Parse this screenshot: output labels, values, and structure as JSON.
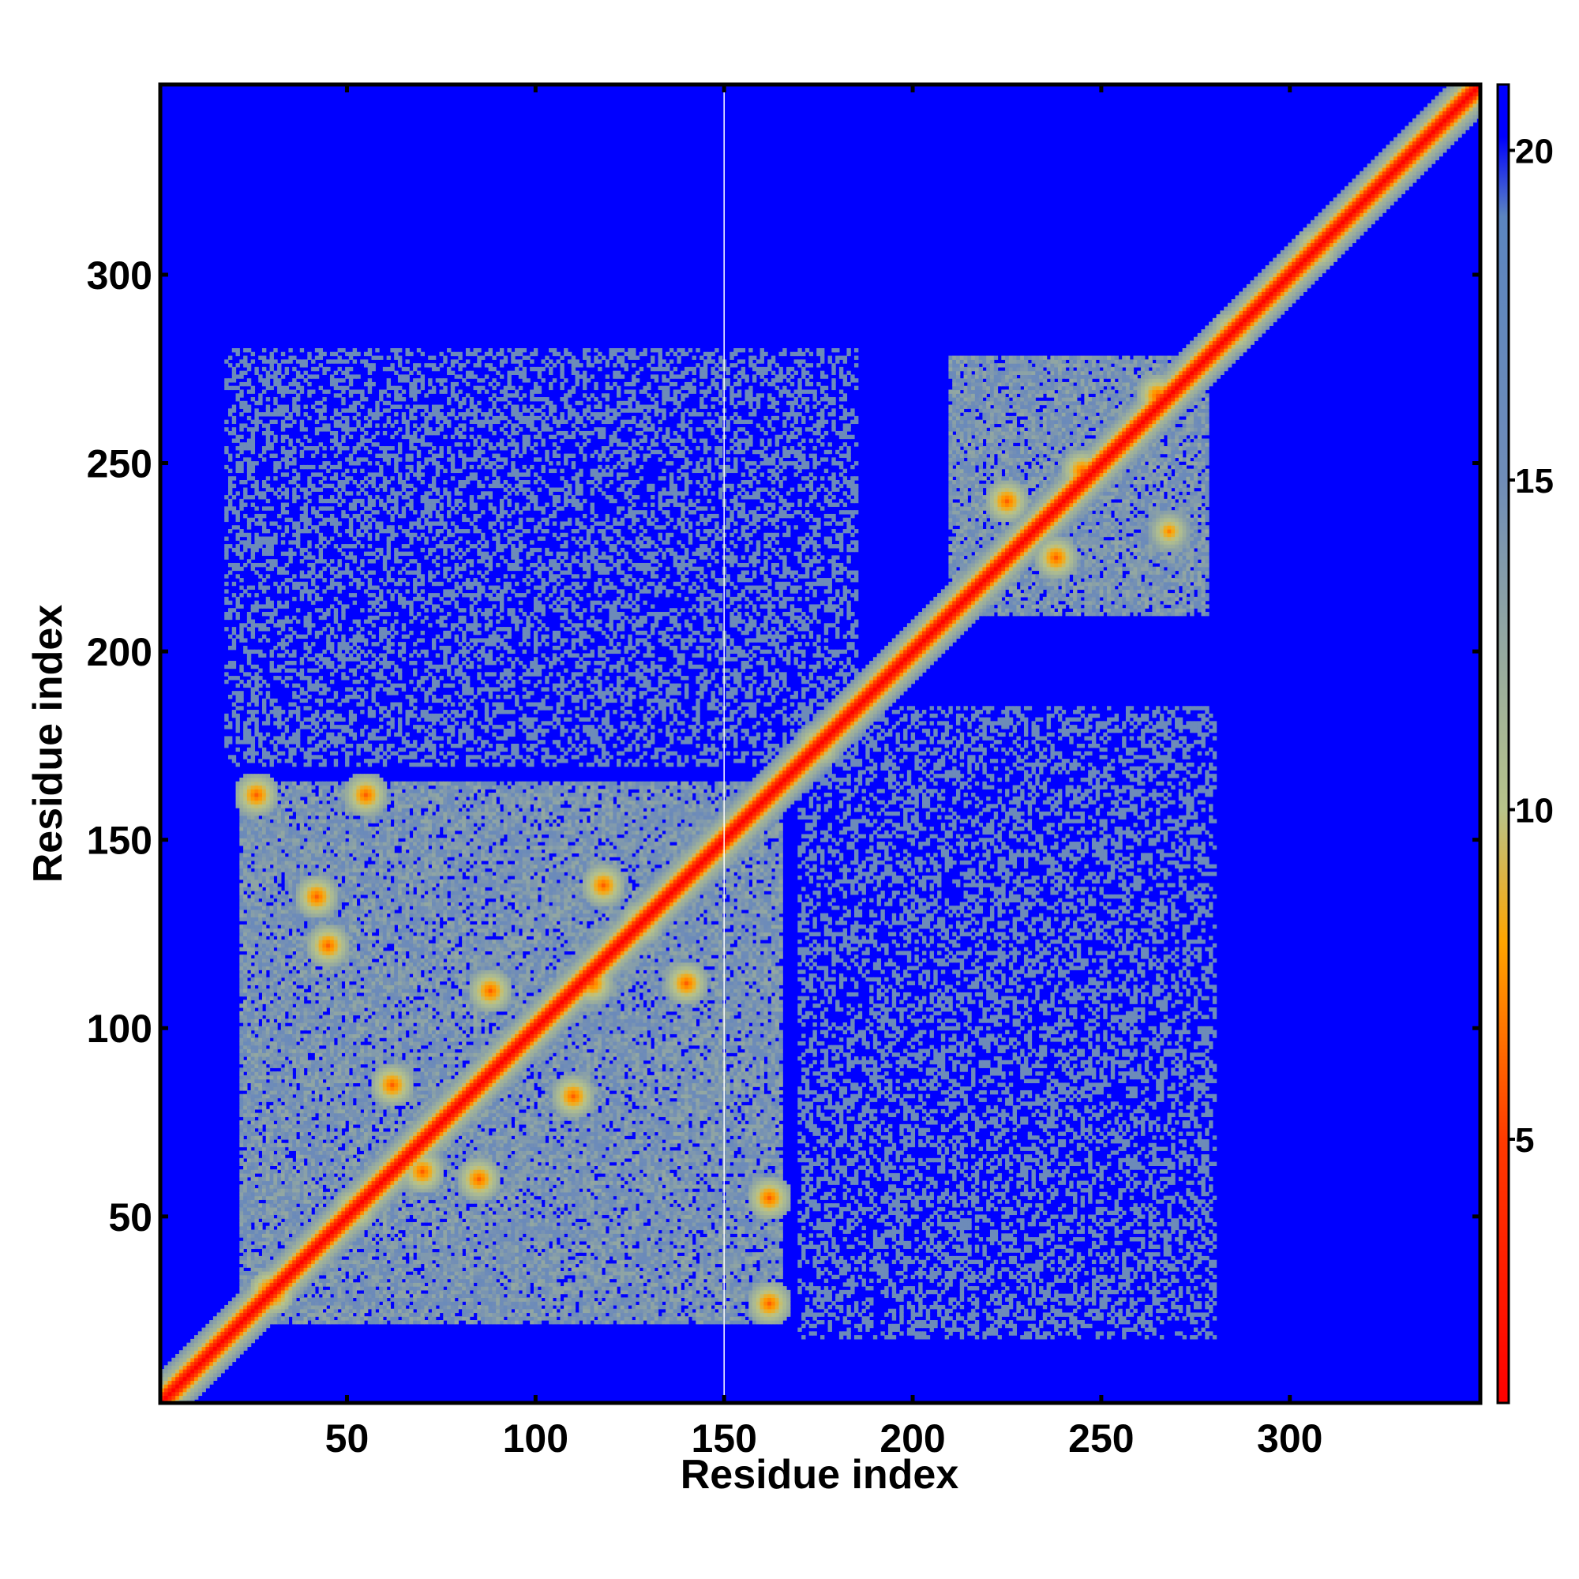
{
  "chart_data": {
    "type": "heatmap",
    "title": "",
    "xlabel": "Residue index",
    "ylabel": "Residue index",
    "xlim": [
      1,
      350
    ],
    "ylim": [
      1,
      350
    ],
    "x_ticks": [
      50,
      100,
      150,
      200,
      250,
      300
    ],
    "y_ticks": [
      50,
      100,
      150,
      200,
      250,
      300
    ],
    "x_tick_labels": [
      "50",
      "100",
      "150",
      "200",
      "250",
      "300"
    ],
    "y_tick_labels": [
      "50",
      "100",
      "150",
      "200",
      "250",
      "300"
    ],
    "grid": false,
    "colorbar": {
      "range": [
        1,
        21
      ],
      "ticks": [
        5,
        10,
        15,
        20
      ],
      "tick_labels": [
        "5",
        "10",
        "15",
        "20"
      ],
      "stops": [
        {
          "value": 1,
          "color": "#ff0000"
        },
        {
          "value": 5,
          "color": "#ff3a00"
        },
        {
          "value": 8,
          "color": "#ffa500"
        },
        {
          "value": 10,
          "color": "#b8c48a"
        },
        {
          "value": 15,
          "color": "#6f8cb8"
        },
        {
          "value": 19,
          "color": "#5b85c0"
        },
        {
          "value": 20.2,
          "color": "#0000ff"
        },
        {
          "value": 21,
          "color": "#0000ff"
        }
      ]
    },
    "background_value": 21,
    "diagonal": {
      "start": 1,
      "end": 350
    },
    "domains": [
      {
        "from": 22,
        "to": 165,
        "value": 15
      },
      {
        "from": 210,
        "to": 278,
        "value": 15
      }
    ],
    "inter_domain_blocks": [
      {
        "x_from": 18,
        "x_to": 185,
        "y_from": 170,
        "y_to": 280,
        "value": 15.5
      },
      {
        "x_from": 170,
        "x_to": 280,
        "y_from": 18,
        "y_to": 185,
        "value": 15.5
      }
    ],
    "contact_features": [
      {
        "x": 30,
        "y": 30,
        "value": 5
      },
      {
        "x": 26,
        "y": 162,
        "value": 6
      },
      {
        "x": 55,
        "y": 162,
        "value": 6
      },
      {
        "x": 42,
        "y": 135,
        "value": 6
      },
      {
        "x": 45,
        "y": 122,
        "value": 6
      },
      {
        "x": 118,
        "y": 138,
        "value": 6
      },
      {
        "x": 128,
        "y": 128,
        "value": 6
      },
      {
        "x": 115,
        "y": 112,
        "value": 6
      },
      {
        "x": 88,
        "y": 110,
        "value": 6
      },
      {
        "x": 140,
        "y": 112,
        "value": 6
      },
      {
        "x": 62,
        "y": 85,
        "value": 6
      },
      {
        "x": 110,
        "y": 82,
        "value": 6
      },
      {
        "x": 70,
        "y": 62,
        "value": 6
      },
      {
        "x": 85,
        "y": 60,
        "value": 6
      },
      {
        "x": 162,
        "y": 55,
        "value": 6
      },
      {
        "x": 162,
        "y": 27,
        "value": 6
      },
      {
        "x": 52,
        "y": 52,
        "value": 6
      },
      {
        "x": 225,
        "y": 240,
        "value": 6
      },
      {
        "x": 245,
        "y": 248,
        "value": 6
      },
      {
        "x": 238,
        "y": 225,
        "value": 6
      },
      {
        "x": 265,
        "y": 268,
        "value": 6
      },
      {
        "x": 268,
        "y": 232,
        "value": 7
      },
      {
        "x": 210,
        "y": 210,
        "value": 7
      },
      {
        "x": 175,
        "y": 175,
        "value": 6
      },
      {
        "x": 285,
        "y": 285,
        "value": 6
      },
      {
        "x": 307,
        "y": 307,
        "value": 6
      }
    ],
    "artifact_column": {
      "x": 150
    }
  }
}
